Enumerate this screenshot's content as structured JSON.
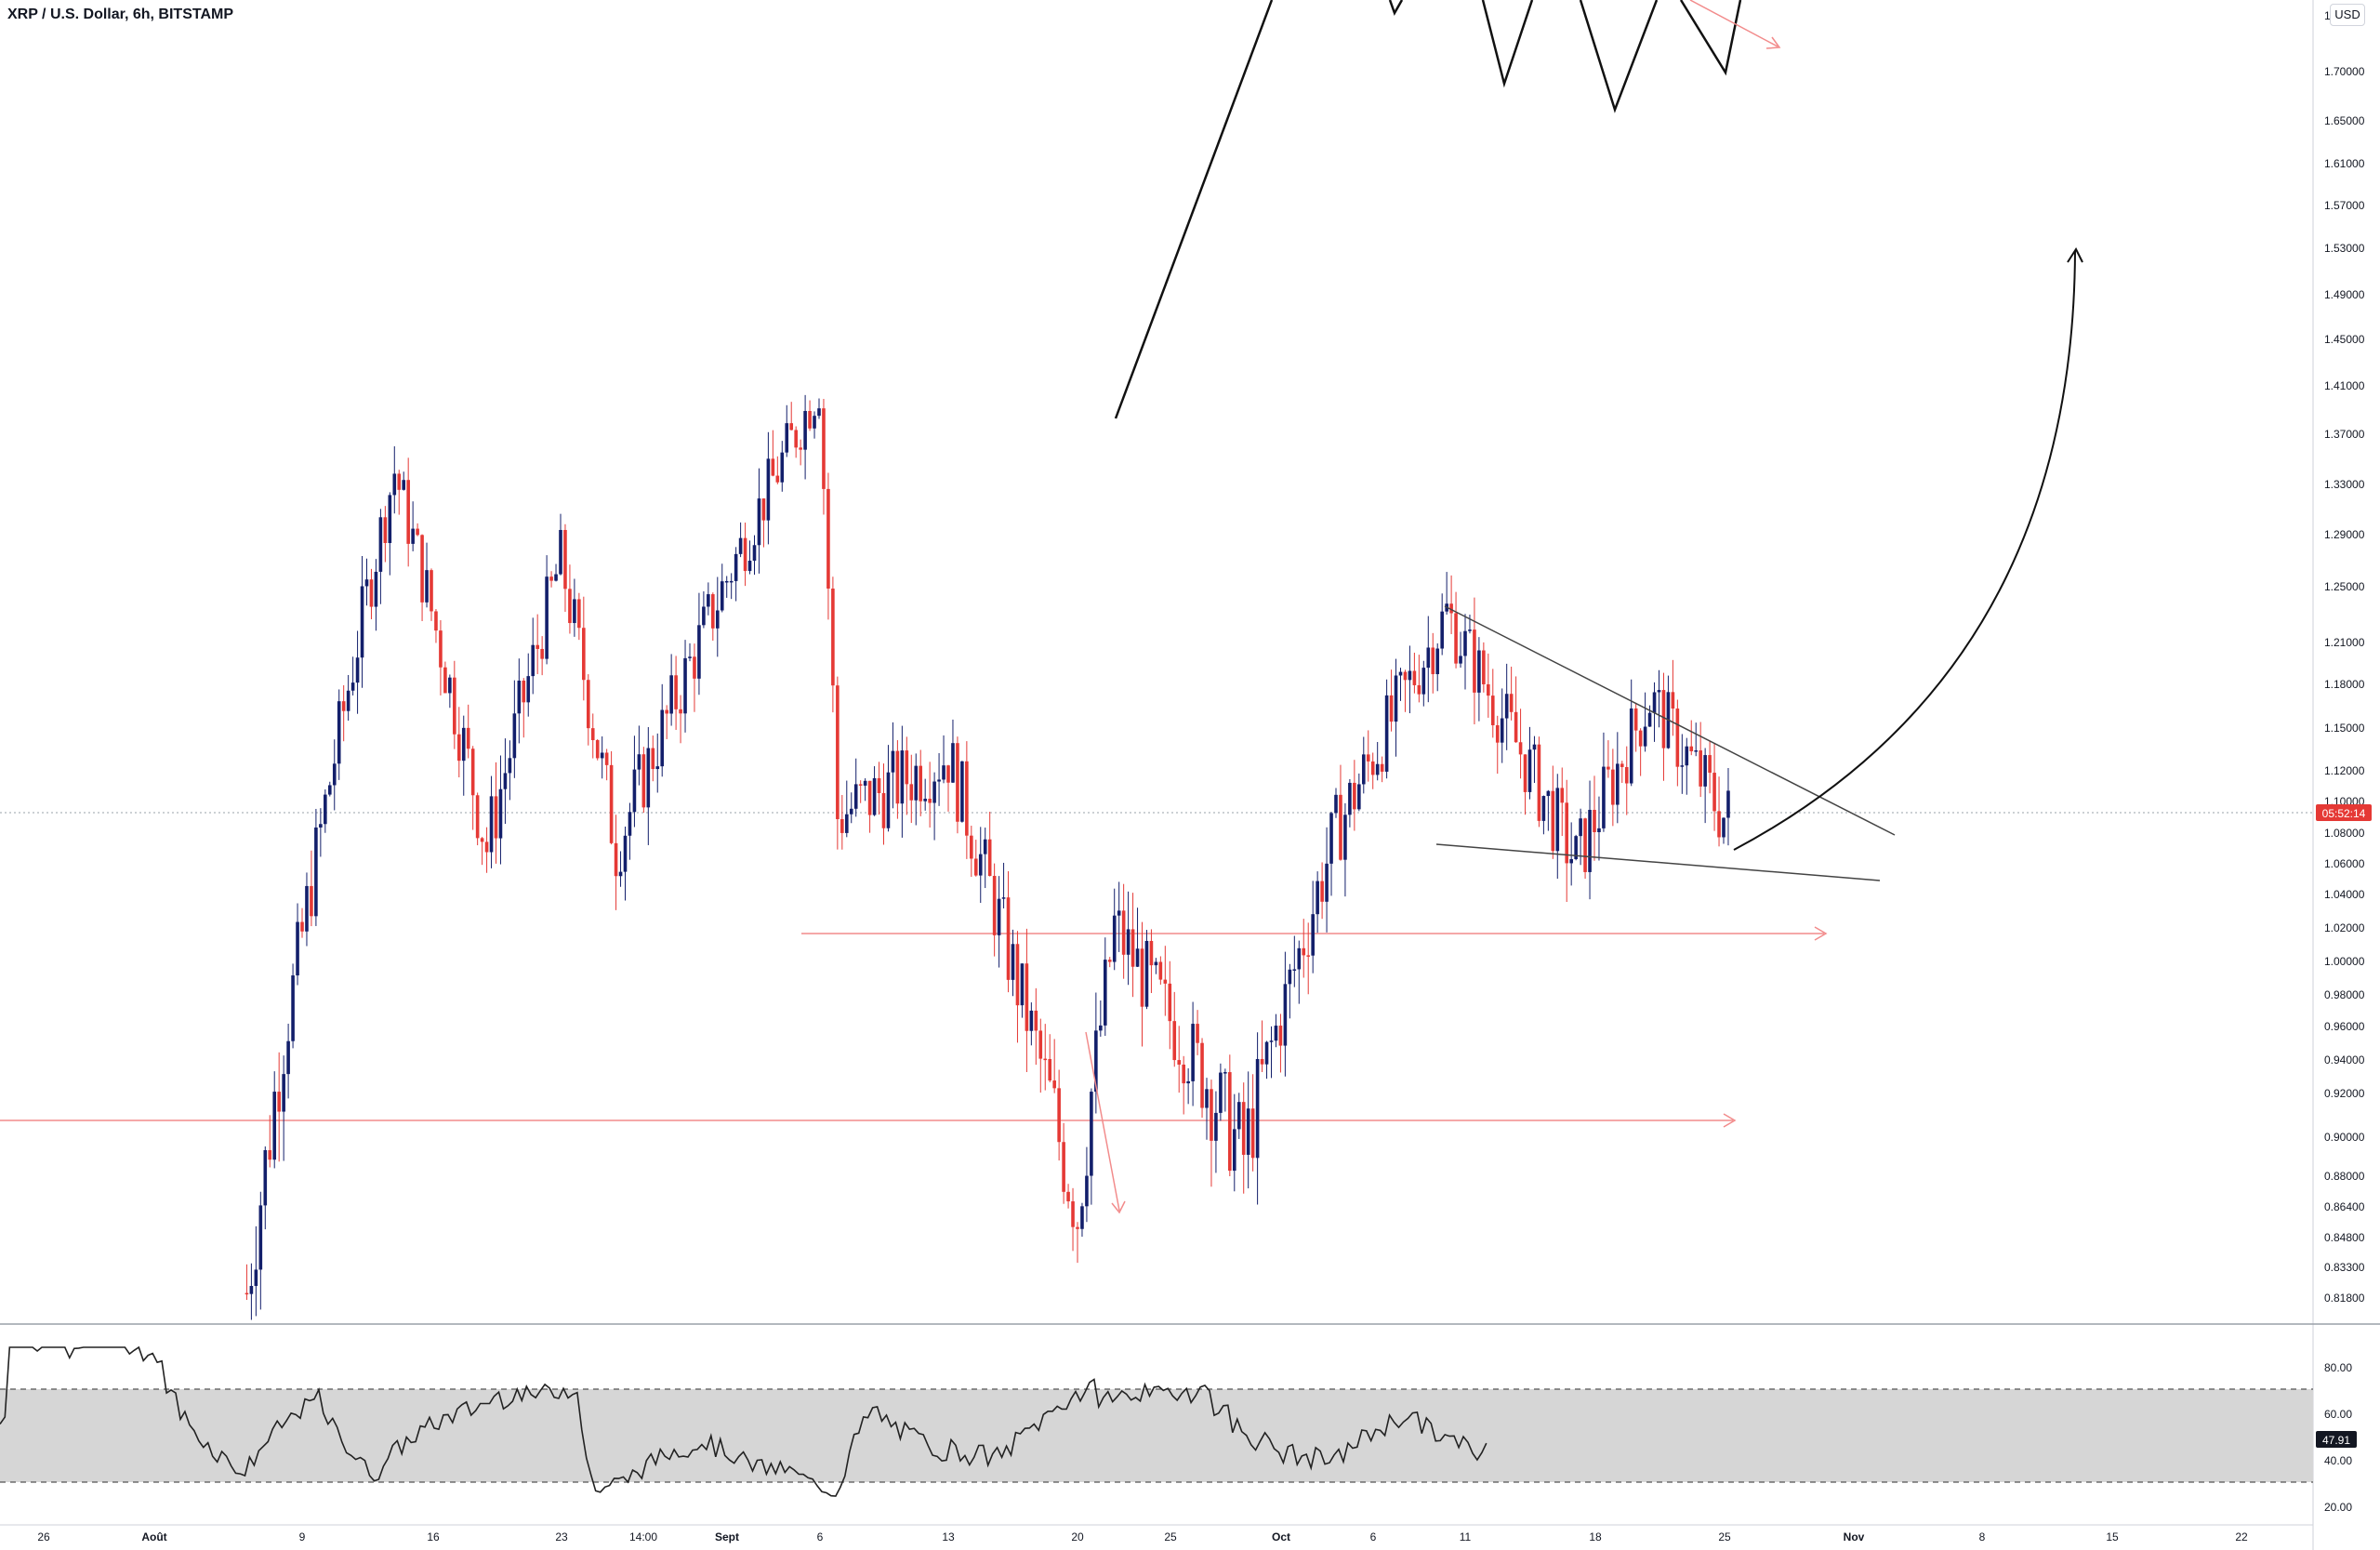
{
  "header": {
    "symbol_title": "XRP / U.S. Dollar, 6h, BITSTAMP",
    "currency_button": "USD"
  },
  "colors": {
    "up": "#131f6b",
    "down": "#e53935",
    "drawing": "#111111",
    "level_line": "#f28b8b",
    "rsi_band": "#d6d6d6",
    "price_badge": "#e53935"
  },
  "chart_data": [
    {
      "type": "candlestick",
      "title": "XRP / U.S. Dollar, 6h, BITSTAMP",
      "y_axis_labels": [
        "1.75000",
        "1.70000",
        "1.65000",
        "1.61000",
        "1.57000",
        "1.53000",
        "1.49000",
        "1.45000",
        "1.41000",
        "1.37000",
        "1.33000",
        "1.29000",
        "1.25000",
        "1.21000",
        "1.18000",
        "1.15000",
        "1.12000",
        "1.10000",
        "1.08000",
        "1.06000",
        "1.04000",
        "1.02000",
        "1.00000",
        "0.98000",
        "0.96000",
        "0.94000",
        "0.92000",
        "0.90000",
        "0.88000",
        "0.86400",
        "0.84800",
        "0.83300",
        "0.81800"
      ],
      "x_axis_labels": [
        "26",
        "Août",
        "9",
        "16",
        "23",
        "14:00",
        "Sept",
        "6",
        "13",
        "20",
        "25",
        "Oct",
        "6",
        "11",
        "18",
        "25",
        "Nov",
        "8",
        "15",
        "22"
      ],
      "current_price": "1.09150",
      "countdown": "05:52:14",
      "key_points": [
        {
          "date": "2021-08-06",
          "price": 0.82
        },
        {
          "date": "2021-08-14",
          "price": 1.34
        },
        {
          "date": "2021-08-19",
          "price": 1.07
        },
        {
          "date": "2021-08-23",
          "price": 1.27
        },
        {
          "date": "2021-08-26",
          "price": 1.07
        },
        {
          "date": "2021-09-06",
          "price": 1.41
        },
        {
          "date": "2021-09-07",
          "price": 1.09
        },
        {
          "date": "2021-09-13",
          "price": 1.13
        },
        {
          "date": "2021-09-20",
          "price": 0.86
        },
        {
          "date": "2021-09-22",
          "price": 1.02
        },
        {
          "date": "2021-09-29",
          "price": 0.89
        },
        {
          "date": "2021-10-04",
          "price": 1.08
        },
        {
          "date": "2021-10-10",
          "price": 1.23
        },
        {
          "date": "2021-10-17",
          "price": 1.06
        },
        {
          "date": "2021-10-21",
          "price": 1.17
        },
        {
          "date": "2021-10-25",
          "price": 1.09
        }
      ],
      "support_levels": [
        1.02,
        0.906
      ]
    },
    {
      "type": "line",
      "title": "",
      "y_axis_labels": [
        "80.00",
        "60.00",
        "40.00",
        "20.00"
      ],
      "band": [
        30,
        70
      ],
      "current_value": "47.91"
    }
  ]
}
